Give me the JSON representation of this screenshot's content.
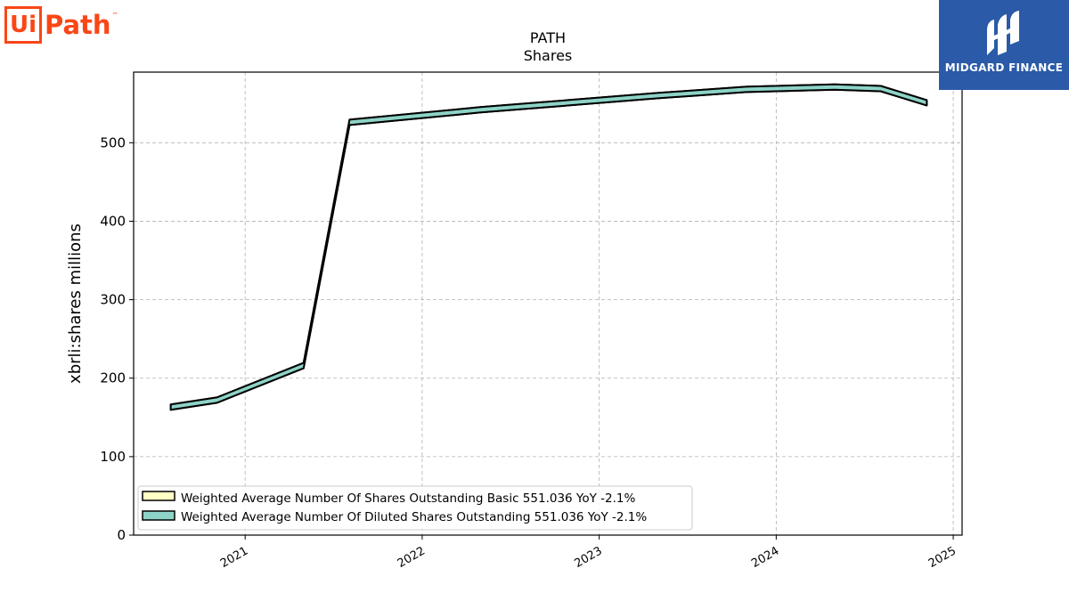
{
  "logos": {
    "left_logo_ui": "Ui",
    "left_logo_path": "Path",
    "left_logo_tm": "™",
    "right_logo_text": "MIDGARD FINANCE"
  },
  "colors": {
    "basic_fill": "#ffffc6",
    "diluted_fill": "#8dd3c7",
    "edge": "#000000",
    "grid": "#b0b0b0",
    "uipath_orange": "#fa4616",
    "midgard_blue": "#2a5aa8"
  },
  "chart_data": {
    "type": "line",
    "title": "PATH",
    "subtitle": "Shares",
    "xlabel": "",
    "ylabel": "xbrli:shares millions",
    "ylim": [
      0,
      590
    ],
    "xlim": [
      2020.37,
      2025.05
    ],
    "yticks": [
      0,
      100,
      200,
      300,
      400,
      500
    ],
    "xticks": [
      "2021",
      "2022",
      "2023",
      "2024",
      "2025"
    ],
    "grid": true,
    "legend_position": "lower-left",
    "legend": [
      "Weighted Average Number Of Shares Outstanding Basic  551.036 YoY -2.1%",
      "Weighted Average Number Of Diluted Shares Outstanding  551.036 YoY -2.1%"
    ],
    "x": [
      2020.58,
      2020.84,
      2021.33,
      2021.59,
      2022.33,
      2023.33,
      2023.83,
      2024.33,
      2024.59,
      2024.85
    ],
    "series": [
      {
        "name": "Weighted Average Number Of Shares Outstanding Basic",
        "values": [
          163,
          172,
          216,
          526,
          542,
          560,
          568,
          571,
          569,
          551
        ]
      },
      {
        "name": "Weighted Average Number Of Diluted Shares Outstanding",
        "values": [
          163,
          172,
          216,
          526,
          542,
          560,
          568,
          571,
          569,
          551
        ]
      }
    ]
  }
}
